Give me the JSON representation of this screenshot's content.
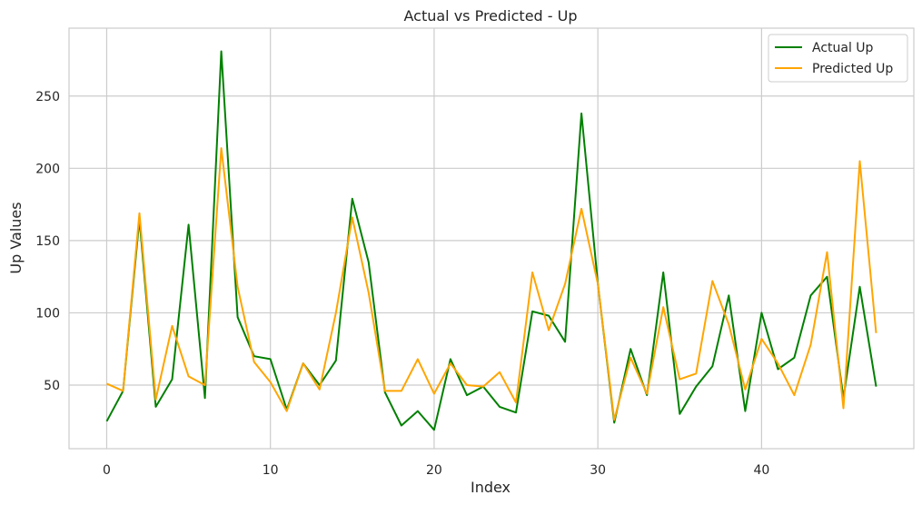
{
  "chart_data": {
    "type": "line",
    "title": "Actual vs Predicted - Up",
    "xlabel": "Index",
    "ylabel": "Up Values",
    "xlim": [
      -2.3,
      49.3
    ],
    "ylim": [
      6,
      297
    ],
    "xticks": [
      0,
      10,
      20,
      30,
      40
    ],
    "yticks": [
      50,
      100,
      150,
      200,
      250
    ],
    "grid": true,
    "legend_position": "top-right",
    "x": [
      0,
      1,
      2,
      3,
      4,
      5,
      6,
      7,
      8,
      9,
      10,
      11,
      12,
      13,
      14,
      15,
      16,
      17,
      18,
      19,
      20,
      21,
      22,
      23,
      24,
      25,
      26,
      27,
      28,
      29,
      30,
      31,
      32,
      33,
      34,
      35,
      36,
      37,
      38,
      39,
      40,
      41,
      42,
      43,
      44,
      45,
      46,
      47
    ],
    "series": [
      {
        "name": "Actual Up",
        "color": "#008000",
        "values": [
          25,
          46,
          165,
          35,
          54,
          161,
          41,
          281,
          97,
          70,
          68,
          33,
          65,
          50,
          67,
          179,
          135,
          45,
          22,
          32,
          19,
          68,
          43,
          49,
          35,
          31,
          101,
          98,
          80,
          238,
          120,
          24,
          75,
          43,
          128,
          30,
          49,
          63,
          112,
          32,
          100,
          61,
          69,
          112,
          125,
          41,
          118,
          49
        ]
      },
      {
        "name": "Predicted Up",
        "color": "#ffa500",
        "values": [
          51,
          46,
          169,
          40,
          91,
          56,
          50,
          214,
          118,
          66,
          52,
          32,
          65,
          47,
          100,
          166,
          114,
          46,
          46,
          68,
          44,
          65,
          50,
          49,
          59,
          38,
          128,
          88,
          120,
          172,
          120,
          26,
          69,
          44,
          104,
          54,
          58,
          122,
          92,
          47,
          82,
          65,
          43,
          78,
          142,
          34,
          205,
          86
        ]
      }
    ]
  }
}
